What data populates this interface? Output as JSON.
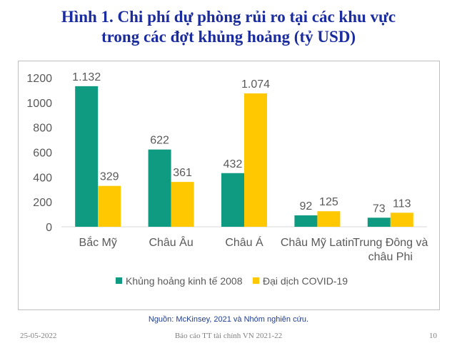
{
  "title": {
    "line1": "Hình 1. Chi phí dự phòng rủi ro tại các khu vực",
    "line2": "trong các đợt khủng hoảng (tỷ USD)"
  },
  "chart_data": {
    "type": "bar",
    "categories": [
      [
        "Bắc Mỹ"
      ],
      [
        "Châu Âu"
      ],
      [
        "Châu Á"
      ],
      [
        "Châu Mỹ Latin"
      ],
      [
        "Trung Đông và",
        "châu Phi"
      ]
    ],
    "series": [
      {
        "name": "Khủng hoảng kinh tế 2008",
        "color": "#0f9a82",
        "values": [
          1132,
          622,
          432,
          92,
          73
        ],
        "labels": [
          "1.132",
          "622",
          "432",
          "92",
          "73"
        ]
      },
      {
        "name": "Đại dịch COVID-19",
        "color": "#ffc800",
        "values": [
          329,
          361,
          1074,
          125,
          113
        ],
        "labels": [
          "329",
          "361",
          "1.074",
          "125",
          "113"
        ]
      }
    ],
    "ylim": [
      0,
      1200
    ],
    "yticks": [
      0,
      200,
      400,
      600,
      800,
      1000,
      1200
    ],
    "grid": false,
    "legend_position": "bottom"
  },
  "source": "Nguồn: McKinsey, 2021 và Nhóm nghiên cứu.",
  "footer": {
    "date": "25-05-2022",
    "title": "Báo cáo TT tài chính VN 2021-22",
    "page": "10"
  }
}
